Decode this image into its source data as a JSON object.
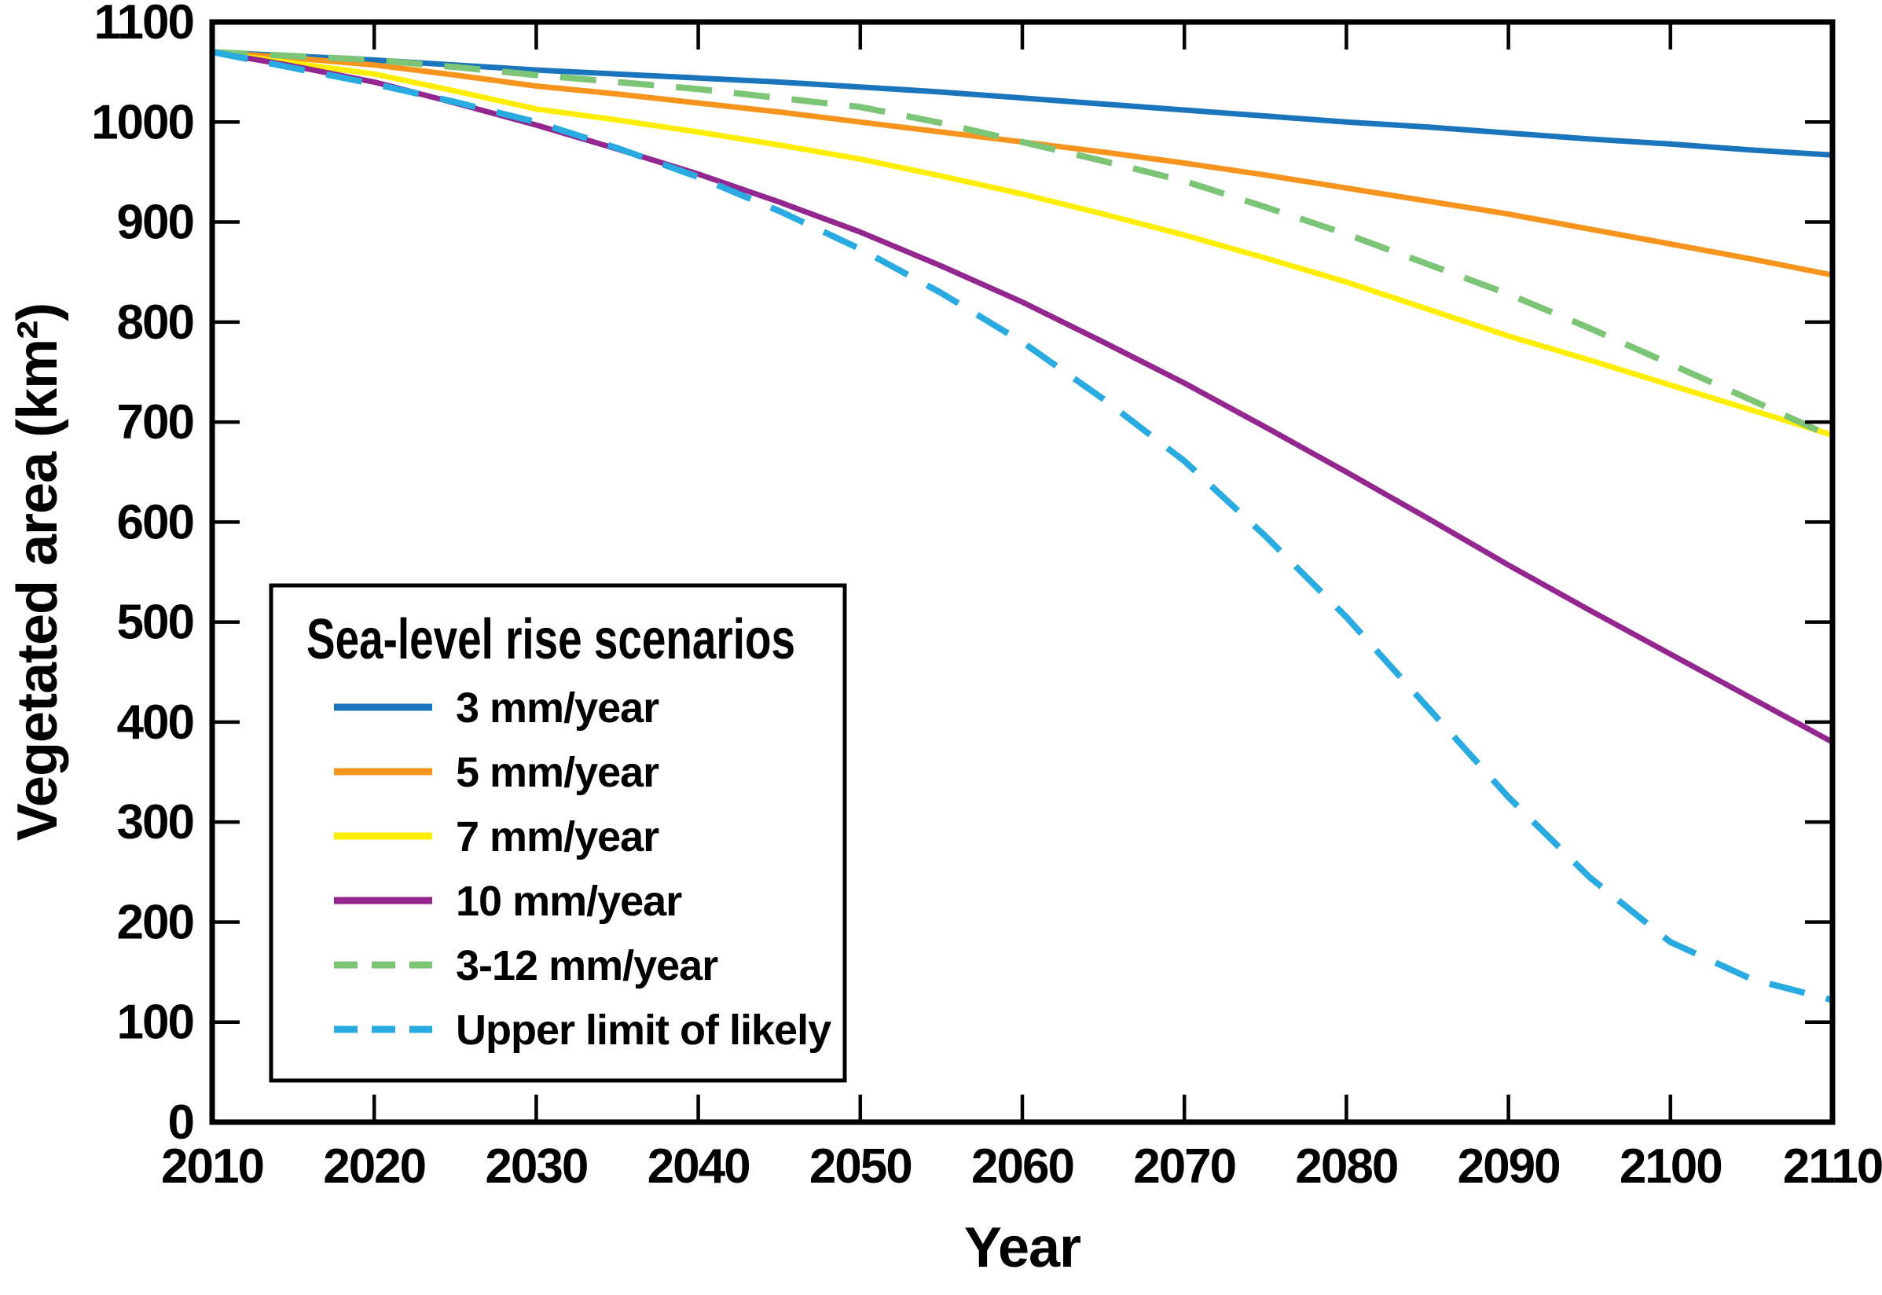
{
  "chart_data": {
    "type": "line",
    "title": "",
    "xlabel": "Year",
    "ylabel": "Vegetated area (km²)",
    "xlim": [
      2010,
      2110
    ],
    "ylim": [
      0,
      1100
    ],
    "xticks": [
      2010,
      2020,
      2030,
      2040,
      2050,
      2060,
      2070,
      2080,
      2090,
      2100,
      2110
    ],
    "yticks": [
      0,
      100,
      200,
      300,
      400,
      500,
      600,
      700,
      800,
      900,
      1000,
      1100
    ],
    "grid": false,
    "legend_title": "Sea-level rise scenarios",
    "legend_position": "lower-left",
    "axis_color": "#000000",
    "background_color": "#ffffff",
    "x": [
      2010,
      2015,
      2020,
      2025,
      2030,
      2035,
      2040,
      2045,
      2050,
      2055,
      2060,
      2065,
      2070,
      2075,
      2080,
      2085,
      2090,
      2095,
      2100,
      2105,
      2110
    ],
    "series": [
      {
        "name": "3 mm/year",
        "color": "#1B75BC",
        "style": "solid",
        "values": [
          1070,
          1066,
          1062,
          1057,
          1052,
          1048,
          1044,
          1040,
          1035,
          1030,
          1024,
          1018,
          1012,
          1006,
          1000,
          995,
          989,
          983,
          978,
          972,
          967
        ]
      },
      {
        "name": "5 mm/year",
        "color": "#F7941D",
        "style": "solid",
        "values": [
          1070,
          1064,
          1057,
          1047,
          1036,
          1028,
          1019,
          1010,
          1000,
          990,
          980,
          970,
          959,
          947,
          934,
          921,
          908,
          893,
          878,
          863,
          847
        ]
      },
      {
        "name": "7 mm/year",
        "color": "#FFEE00",
        "style": "solid",
        "values": [
          1070,
          1059,
          1048,
          1031,
          1013,
          1002,
          990,
          977,
          963,
          946,
          928,
          908,
          887,
          864,
          840,
          813,
          786,
          762,
          737,
          712,
          687
        ]
      },
      {
        "name": "10 mm/year",
        "color": "#93268F",
        "style": "solid",
        "values": [
          1070,
          1056,
          1040,
          1019,
          997,
          973,
          948,
          920,
          890,
          856,
          820,
          780,
          739,
          695,
          650,
          604,
          557,
          512,
          468,
          424,
          380
        ]
      },
      {
        "name": "3-12 mm/year",
        "color": "#7CC576",
        "style": "dashed",
        "values": [
          1070,
          1066,
          1062,
          1055,
          1047,
          1040,
          1033,
          1024,
          1015,
          999,
          980,
          961,
          941,
          915,
          888,
          858,
          828,
          794,
          758,
          722,
          685
        ]
      },
      {
        "name": "Upper limit of likely",
        "color": "#29ABE2",
        "style": "dashed",
        "values": [
          1070,
          1054,
          1038,
          1020,
          1000,
          974,
          945,
          911,
          873,
          829,
          780,
          723,
          661,
          586,
          505,
          415,
          325,
          245,
          180,
          143,
          122
        ]
      }
    ]
  }
}
